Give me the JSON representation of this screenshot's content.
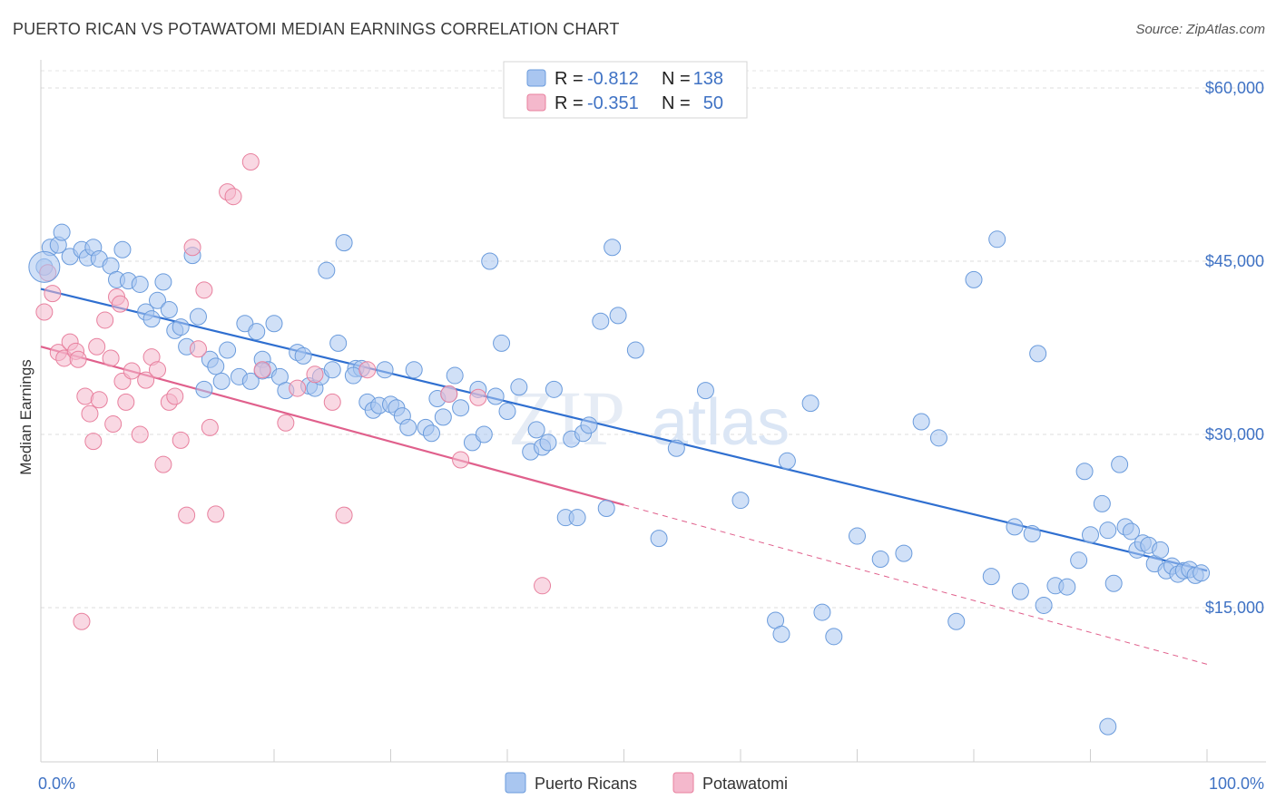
{
  "title": "PUERTO RICAN VS POTAWATOMI MEDIAN EARNINGS CORRELATION CHART",
  "source": "Source: ZipAtlas.com",
  "chart_data": {
    "type": "scatter",
    "ylabel": "Median Earnings",
    "x_tick_labels": [
      "0.0%",
      "100.0%"
    ],
    "xlim": [
      0,
      100
    ],
    "ylim": [
      2000,
      63000
    ],
    "y_ticks": [
      15000,
      30000,
      45000,
      60000
    ],
    "y_tick_labels": [
      "$15,000",
      "$30,000",
      "$45,000",
      "$60,000"
    ],
    "grid": "horizontal dashed",
    "watermark": "ZIPatlas",
    "legend": {
      "placement": "top-center",
      "entries": [
        {
          "r_label": "R =",
          "r_value": "-0.812",
          "n_label": "N =",
          "n_value": "138",
          "color": "#a9c6f0"
        },
        {
          "r_label": "R =",
          "r_value": "-0.351",
          "n_label": "N =",
          "n_value": "50",
          "color": "#f4b8cc"
        }
      ]
    },
    "series": [
      {
        "name": "Puerto Ricans",
        "color": "#a9c6f0",
        "edge": "#6a9bdc",
        "trend": {
          "x": [
            0,
            100
          ],
          "y": [
            42600,
            18200
          ],
          "color": "#2f6fd0"
        },
        "points": [
          [
            0.3,
            44500
          ],
          [
            0.8,
            46200
          ],
          [
            1.5,
            46400
          ],
          [
            1.8,
            47500
          ],
          [
            2.5,
            45400
          ],
          [
            3.5,
            46000
          ],
          [
            4,
            45300
          ],
          [
            4.5,
            46200
          ],
          [
            5,
            45200
          ],
          [
            6,
            44600
          ],
          [
            6.5,
            43400
          ],
          [
            7,
            46000
          ],
          [
            7.5,
            43300
          ],
          [
            8.5,
            43000
          ],
          [
            9,
            40600
          ],
          [
            9.5,
            40000
          ],
          [
            10,
            41600
          ],
          [
            10.5,
            43200
          ],
          [
            11,
            40800
          ],
          [
            11.5,
            39000
          ],
          [
            12,
            39300
          ],
          [
            12.5,
            37600
          ],
          [
            13,
            45500
          ],
          [
            13.5,
            40200
          ],
          [
            14,
            33900
          ],
          [
            14.5,
            36500
          ],
          [
            15,
            35900
          ],
          [
            15.5,
            34600
          ],
          [
            16,
            37300
          ],
          [
            17,
            35000
          ],
          [
            17.5,
            39600
          ],
          [
            18,
            34600
          ],
          [
            18.5,
            38900
          ],
          [
            19,
            36500
          ],
          [
            19.5,
            35600
          ],
          [
            20,
            39600
          ],
          [
            20.5,
            35000
          ],
          [
            21,
            33800
          ],
          [
            22,
            37100
          ],
          [
            22.5,
            36800
          ],
          [
            23,
            34200
          ],
          [
            23.5,
            34000
          ],
          [
            24,
            35000
          ],
          [
            24.5,
            44200
          ],
          [
            25,
            35600
          ],
          [
            25.5,
            37900
          ],
          [
            26,
            46600
          ],
          [
            27,
            35700
          ],
          [
            27.5,
            35700
          ],
          [
            28,
            32800
          ],
          [
            28.5,
            32100
          ],
          [
            29,
            32500
          ],
          [
            29.5,
            35600
          ],
          [
            30,
            32600
          ],
          [
            30.5,
            32300
          ],
          [
            31,
            31600
          ],
          [
            31.5,
            30600
          ],
          [
            32,
            35600
          ],
          [
            33,
            30600
          ],
          [
            33.5,
            30100
          ],
          [
            34,
            33100
          ],
          [
            34.5,
            31500
          ],
          [
            35,
            33500
          ],
          [
            35.5,
            35100
          ],
          [
            36,
            32300
          ],
          [
            37,
            29300
          ],
          [
            37.5,
            33900
          ],
          [
            38,
            30000
          ],
          [
            38.5,
            45000
          ],
          [
            39,
            33300
          ],
          [
            39.5,
            37900
          ],
          [
            40,
            32000
          ],
          [
            41,
            34100
          ],
          [
            42,
            28500
          ],
          [
            42.5,
            30400
          ],
          [
            43,
            28900
          ],
          [
            43.5,
            29300
          ],
          [
            44,
            33900
          ],
          [
            45,
            22800
          ],
          [
            45.5,
            29600
          ],
          [
            46,
            22800
          ],
          [
            46.5,
            30100
          ],
          [
            47,
            30800
          ],
          [
            48,
            39800
          ],
          [
            48.5,
            23600
          ],
          [
            49,
            46200
          ],
          [
            49.5,
            40300
          ],
          [
            51,
            37300
          ],
          [
            53,
            21000
          ],
          [
            54.5,
            28800
          ],
          [
            57,
            33800
          ],
          [
            60,
            24300
          ],
          [
            63,
            13900
          ],
          [
            63.5,
            12700
          ],
          [
            64,
            27700
          ],
          [
            66,
            32700
          ],
          [
            67,
            14600
          ],
          [
            68,
            12500
          ],
          [
            70,
            21200
          ],
          [
            72,
            19200
          ],
          [
            74,
            19700
          ],
          [
            75.5,
            31100
          ],
          [
            77,
            29700
          ],
          [
            78.5,
            13800
          ],
          [
            80,
            43400
          ],
          [
            81.5,
            17700
          ],
          [
            82,
            46900
          ],
          [
            83.5,
            22000
          ],
          [
            84,
            16400
          ],
          [
            85,
            21400
          ],
          [
            85.5,
            37000
          ],
          [
            86,
            15200
          ],
          [
            87,
            16900
          ],
          [
            88,
            16800
          ],
          [
            89,
            19100
          ],
          [
            89.5,
            26800
          ],
          [
            90,
            21300
          ],
          [
            91,
            24000
          ],
          [
            91.5,
            21700
          ],
          [
            92,
            17100
          ],
          [
            92.5,
            27400
          ],
          [
            93,
            22000
          ],
          [
            93.5,
            21600
          ],
          [
            94,
            20000
          ],
          [
            94.5,
            20600
          ],
          [
            95,
            20400
          ],
          [
            95.5,
            18800
          ],
          [
            96,
            20000
          ],
          [
            96.5,
            18200
          ],
          [
            97,
            18600
          ],
          [
            97.5,
            17900
          ],
          [
            98,
            18200
          ],
          [
            98.5,
            18300
          ],
          [
            99,
            17800
          ],
          [
            99.5,
            18000
          ],
          [
            91.5,
            4700
          ],
          [
            26.8,
            35100
          ],
          [
            19,
            35500
          ]
        ]
      },
      {
        "name": "Potawatomi",
        "color": "#f4b8cc",
        "edge": "#e8809e",
        "trend": {
          "x": [
            0,
            50,
            100
          ],
          "y": [
            37600,
            23900,
            10100
          ],
          "solid_until": 50,
          "color": "#e0608c"
        },
        "points": [
          [
            0.3,
            40600
          ],
          [
            0.6,
            44000
          ],
          [
            1,
            42200
          ],
          [
            1.5,
            37100
          ],
          [
            2,
            36600
          ],
          [
            2.5,
            38000
          ],
          [
            3,
            37200
          ],
          [
            3.2,
            36500
          ],
          [
            3.8,
            33300
          ],
          [
            4.2,
            31800
          ],
          [
            4.5,
            29400
          ],
          [
            4.8,
            37600
          ],
          [
            5,
            33000
          ],
          [
            5.5,
            39900
          ],
          [
            6,
            36600
          ],
          [
            6.2,
            30900
          ],
          [
            6.5,
            41900
          ],
          [
            7,
            34600
          ],
          [
            7.3,
            32800
          ],
          [
            7.8,
            35500
          ],
          [
            8.5,
            30000
          ],
          [
            9,
            34700
          ],
          [
            9.5,
            36700
          ],
          [
            10,
            35600
          ],
          [
            10.5,
            27400
          ],
          [
            11,
            32800
          ],
          [
            11.5,
            33300
          ],
          [
            12,
            29500
          ],
          [
            12.5,
            23000
          ],
          [
            13,
            46200
          ],
          [
            13.5,
            37400
          ],
          [
            14,
            42500
          ],
          [
            14.5,
            30600
          ],
          [
            15,
            23100
          ],
          [
            16,
            51000
          ],
          [
            16.5,
            50600
          ],
          [
            18,
            53600
          ],
          [
            19,
            35600
          ],
          [
            21,
            31000
          ],
          [
            22,
            34000
          ],
          [
            23.5,
            35200
          ],
          [
            25,
            32800
          ],
          [
            26,
            23000
          ],
          [
            28,
            35600
          ],
          [
            35,
            33500
          ],
          [
            36,
            27800
          ],
          [
            37.5,
            33200
          ],
          [
            43,
            16900
          ],
          [
            3.5,
            13800
          ],
          [
            6.8,
            41300
          ]
        ]
      }
    ]
  },
  "bottom_legend": [
    {
      "label": "Puerto Ricans",
      "color": "#a9c6f0"
    },
    {
      "label": "Potawatomi",
      "color": "#f4b8cc"
    }
  ]
}
